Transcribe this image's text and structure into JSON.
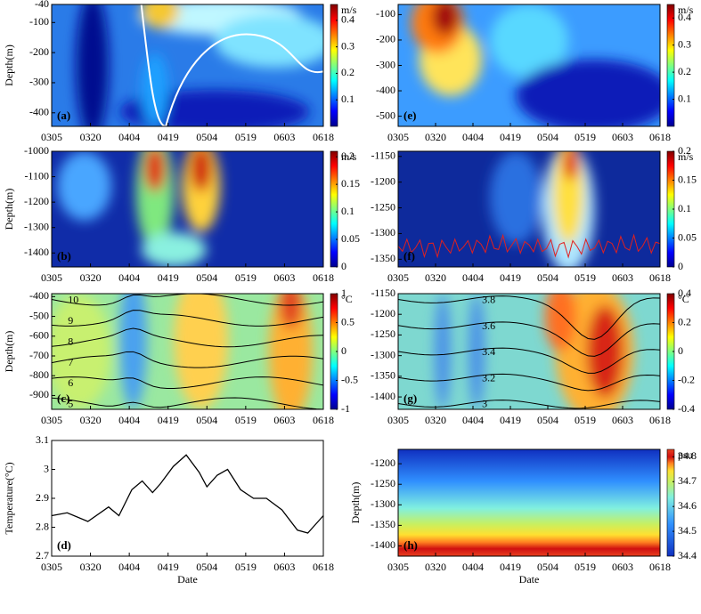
{
  "chart_data": [
    {
      "type": "heatmap",
      "label": "(a)",
      "ylabel": "Depth(m)",
      "xlim": [
        0,
        105
      ],
      "ylim": [
        -445,
        -40
      ],
      "xticks": [
        {
          "value": 0,
          "label": "0305"
        },
        {
          "value": 15,
          "label": "0320"
        },
        {
          "value": 30,
          "label": "0404"
        },
        {
          "value": 45,
          "label": "0419"
        },
        {
          "value": 60,
          "label": "0504"
        },
        {
          "value": 75,
          "label": "0519"
        },
        {
          "value": 90,
          "label": "0603"
        },
        {
          "value": 105,
          "label": "0618"
        }
      ],
      "yticks": [
        -40,
        -100,
        -200,
        -300,
        -400
      ],
      "colorbar": {
        "unit": "m/s",
        "lim": [
          0,
          0.46
        ],
        "ticks": [
          0.1,
          0.2,
          0.3,
          0.4
        ]
      }
    },
    {
      "type": "heatmap",
      "label": "(b)",
      "ylabel": "Depth(m)",
      "xlim": [
        0,
        105
      ],
      "ylim": [
        -1455,
        -1000
      ],
      "xticks": [
        {
          "value": 0,
          "label": "0305"
        },
        {
          "value": 15,
          "label": "0320"
        },
        {
          "value": 30,
          "label": "0404"
        },
        {
          "value": 45,
          "label": "0419"
        },
        {
          "value": 60,
          "label": "0504"
        },
        {
          "value": 75,
          "label": "0519"
        },
        {
          "value": 90,
          "label": "0603"
        },
        {
          "value": 105,
          "label": "0618"
        }
      ],
      "yticks": [
        -1000,
        -1100,
        -1200,
        -1300,
        -1400
      ],
      "colorbar": {
        "unit": "m/s",
        "lim": [
          0,
          0.21
        ],
        "ticks": [
          0,
          0.05,
          0.1,
          0.15,
          0.2
        ]
      }
    },
    {
      "type": "heatmap",
      "label": "(c)",
      "ylabel": "Depth(m)",
      "xlim": [
        0,
        105
      ],
      "ylim": [
        -970,
        -385
      ],
      "xticks": [
        {
          "value": 0,
          "label": "0305"
        },
        {
          "value": 15,
          "label": "0320"
        },
        {
          "value": 30,
          "label": "0404"
        },
        {
          "value": 45,
          "label": "0419"
        },
        {
          "value": 60,
          "label": "0504"
        },
        {
          "value": 75,
          "label": "0519"
        },
        {
          "value": 90,
          "label": "0603"
        },
        {
          "value": 105,
          "label": "0618"
        }
      ],
      "yticks": [
        -400,
        -500,
        -600,
        -700,
        -800,
        -900
      ],
      "colorbar": {
        "unit": "°C",
        "lim": [
          -1,
          1
        ],
        "ticks": [
          -1,
          -0.5,
          0,
          0.5,
          1
        ]
      },
      "contour_labels": [
        "10",
        "9",
        "8",
        "7",
        "6",
        "5"
      ]
    },
    {
      "type": "line",
      "label": "(d)",
      "ylabel": "Temperature(°C)",
      "xlabel": "Date",
      "xlim": [
        0,
        105
      ],
      "ylim": [
        2.7,
        3.1
      ],
      "xticks": [
        {
          "value": 0,
          "label": "0305"
        },
        {
          "value": 15,
          "label": "0320"
        },
        {
          "value": 30,
          "label": "0404"
        },
        {
          "value": 45,
          "label": "0419"
        },
        {
          "value": 60,
          "label": "0504"
        },
        {
          "value": 75,
          "label": "0519"
        },
        {
          "value": 90,
          "label": "0603"
        },
        {
          "value": 105,
          "label": "0618"
        }
      ],
      "yticks": [
        2.7,
        2.8,
        2.9,
        3,
        3.1
      ],
      "color": "#000000",
      "x": [
        0,
        6,
        14,
        22,
        26,
        31,
        35,
        39,
        42,
        47,
        52,
        57,
        60,
        64,
        68,
        73,
        78,
        83,
        89,
        95,
        99,
        102,
        105
      ],
      "y": [
        2.84,
        2.85,
        2.82,
        2.87,
        2.84,
        2.93,
        2.96,
        2.92,
        2.95,
        3.01,
        3.05,
        2.99,
        2.94,
        2.98,
        3.0,
        2.93,
        2.9,
        2.9,
        2.86,
        2.79,
        2.78,
        2.81,
        2.84
      ]
    },
    {
      "type": "heatmap",
      "label": "(e)",
      "xlim": [
        0,
        105
      ],
      "ylim": [
        -540,
        -60
      ],
      "xticks": [
        {
          "value": 0,
          "label": "0305"
        },
        {
          "value": 15,
          "label": "0320"
        },
        {
          "value": 30,
          "label": "0404"
        },
        {
          "value": 45,
          "label": "0419"
        },
        {
          "value": 60,
          "label": "0504"
        },
        {
          "value": 75,
          "label": "0519"
        },
        {
          "value": 90,
          "label": "0603"
        },
        {
          "value": 105,
          "label": "0618"
        }
      ],
      "yticks": [
        -100,
        -200,
        -300,
        -400,
        -500
      ],
      "colorbar": {
        "unit": "m/s",
        "lim": [
          0,
          0.45
        ],
        "ticks": [
          0.1,
          0.2,
          0.3,
          0.4
        ]
      }
    },
    {
      "type": "heatmap",
      "label": "(f)",
      "xlim": [
        0,
        105
      ],
      "ylim": [
        -1365,
        -1140
      ],
      "xticks": [
        {
          "value": 0,
          "label": "0305"
        },
        {
          "value": 15,
          "label": "0320"
        },
        {
          "value": 30,
          "label": "0404"
        },
        {
          "value": 45,
          "label": "0419"
        },
        {
          "value": 60,
          "label": "0504"
        },
        {
          "value": 75,
          "label": "0519"
        },
        {
          "value": 90,
          "label": "0603"
        },
        {
          "value": 105,
          "label": "0618"
        }
      ],
      "yticks": [
        -1150,
        -1200,
        -1250,
        -1300,
        -1350
      ],
      "colorbar": {
        "unit": "m/s",
        "lim": [
          0,
          0.2
        ],
        "ticks": [
          0,
          0.05,
          0.1,
          0.15,
          0.2
        ]
      }
    },
    {
      "type": "heatmap",
      "label": "(g)",
      "xlim": [
        0,
        105
      ],
      "ylim": [
        -1430,
        -1150
      ],
      "xticks": [
        {
          "value": 0,
          "label": "0305"
        },
        {
          "value": 15,
          "label": "0320"
        },
        {
          "value": 30,
          "label": "0404"
        },
        {
          "value": 45,
          "label": "0419"
        },
        {
          "value": 60,
          "label": "0504"
        },
        {
          "value": 75,
          "label": "0519"
        },
        {
          "value": 90,
          "label": "0603"
        },
        {
          "value": 105,
          "label": "0618"
        }
      ],
      "yticks": [
        -1150,
        -1200,
        -1250,
        -1300,
        -1350,
        -1400
      ],
      "colorbar": {
        "unit": "°C",
        "lim": [
          -0.4,
          0.4
        ],
        "ticks": [
          -0.4,
          -0.2,
          0,
          0.2,
          0.4
        ]
      },
      "contour_labels": [
        "3.8",
        "3.6",
        "3.4",
        "3.2",
        "3"
      ]
    },
    {
      "type": "heatmap",
      "label": "(h)",
      "ylabel": "Depth(m)",
      "xlabel": "Date",
      "xlim": [
        0,
        105
      ],
      "ylim": [
        -1425,
        -1165
      ],
      "xticks": [
        {
          "value": 0,
          "label": "0305"
        },
        {
          "value": 15,
          "label": "0320"
        },
        {
          "value": 30,
          "label": "0404"
        },
        {
          "value": 45,
          "label": "0419"
        },
        {
          "value": 60,
          "label": "0504"
        },
        {
          "value": 75,
          "label": "0519"
        },
        {
          "value": 90,
          "label": "0603"
        },
        {
          "value": 105,
          "label": "0618"
        }
      ],
      "yticks": [
        -1200,
        -1250,
        -1300,
        -1350,
        -1400
      ],
      "colorbar": {
        "unit": "psu",
        "lim": [
          34.4,
          34.83
        ],
        "ticks": [
          34.4,
          34.5,
          34.6,
          34.7,
          34.8
        ]
      }
    }
  ]
}
